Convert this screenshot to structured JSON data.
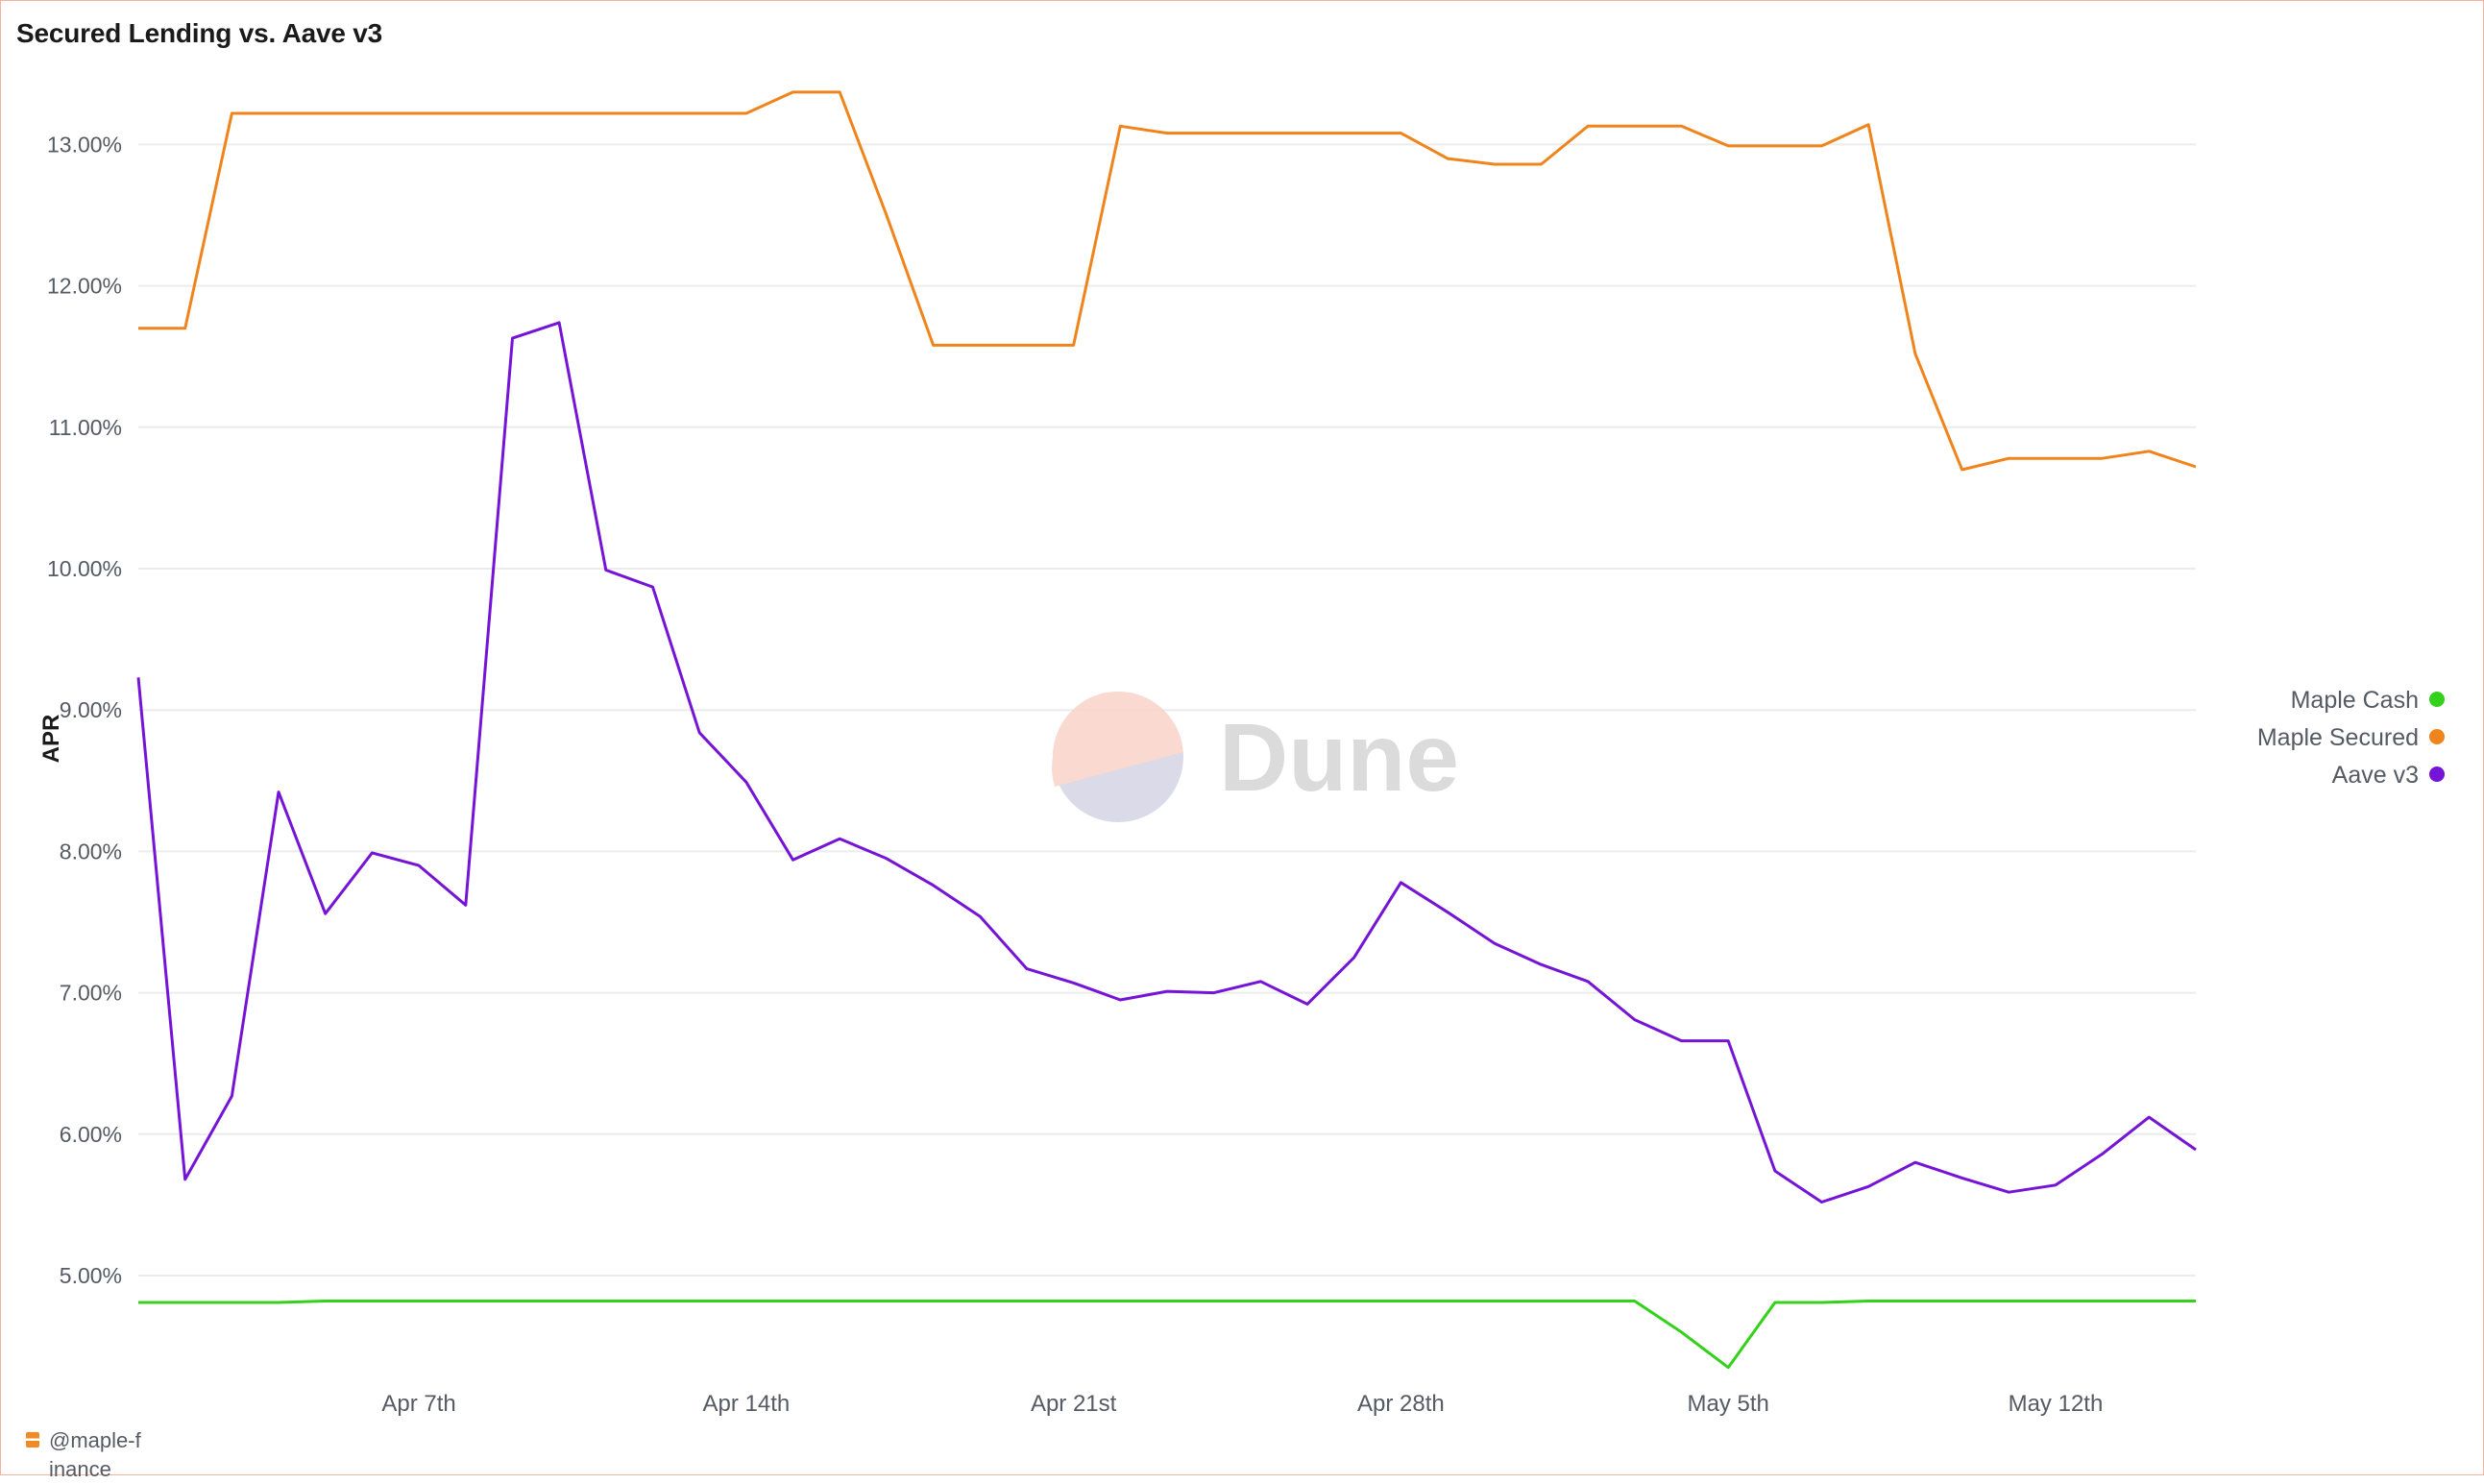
{
  "title": "Secured Lending vs. Aave v3",
  "watermark": "Dune",
  "author": "@maple-finance",
  "chart_data": {
    "type": "line",
    "title": "Secured Lending vs. Aave v3",
    "ylabel": "APR",
    "xlabel": "",
    "ylim": [
      4.0,
      13.5
    ],
    "y_format": "percent_2dp",
    "y_ticks": [
      5,
      6,
      7,
      8,
      9,
      10,
      11,
      12,
      13
    ],
    "grid": true,
    "legend_position": "right",
    "x": [
      "Apr 1",
      "Apr 2",
      "Apr 3",
      "Apr 4",
      "Apr 5",
      "Apr 6",
      "Apr 7",
      "Apr 8",
      "Apr 9",
      "Apr 10",
      "Apr 11",
      "Apr 12",
      "Apr 13",
      "Apr 14",
      "Apr 15",
      "Apr 16",
      "Apr 17",
      "Apr 18",
      "Apr 19",
      "Apr 20",
      "Apr 21",
      "Apr 22",
      "Apr 23",
      "Apr 24",
      "Apr 25",
      "Apr 26",
      "Apr 27",
      "Apr 28",
      "Apr 29",
      "Apr 30",
      "May 1",
      "May 2",
      "May 3",
      "May 4",
      "May 5",
      "May 6",
      "May 7",
      "May 8",
      "May 9",
      "May 10",
      "May 11",
      "May 12",
      "May 13",
      "May 14",
      "May 15"
    ],
    "x_tick_labels": [
      {
        "label": "Apr 7th",
        "index": 6
      },
      {
        "label": "Apr 14th",
        "index": 13
      },
      {
        "label": "Apr 21st",
        "index": 20
      },
      {
        "label": "Apr 28th",
        "index": 27
      },
      {
        "label": "May 5th",
        "index": 34
      },
      {
        "label": "May 12th",
        "index": 41
      }
    ],
    "series": [
      {
        "name": "Maple Cash",
        "color": "#33d11a",
        "values": [
          4.81,
          4.81,
          4.81,
          4.81,
          4.82,
          4.82,
          4.82,
          4.82,
          4.82,
          4.82,
          4.82,
          4.82,
          4.82,
          4.82,
          4.82,
          4.82,
          4.82,
          4.82,
          4.82,
          4.82,
          4.82,
          4.82,
          4.82,
          4.82,
          4.82,
          4.82,
          4.82,
          4.82,
          4.82,
          4.82,
          4.82,
          4.82,
          4.82,
          4.6,
          4.35,
          4.81,
          4.81,
          4.82,
          4.82,
          4.82,
          4.82,
          4.82,
          4.82,
          4.82,
          4.82
        ]
      },
      {
        "name": "Maple Secured",
        "color": "#f0841c",
        "values": [
          11.7,
          11.7,
          13.22,
          13.22,
          13.22,
          13.22,
          13.22,
          13.22,
          13.22,
          13.22,
          13.22,
          13.22,
          13.22,
          13.22,
          13.37,
          13.37,
          12.5,
          11.58,
          11.58,
          11.58,
          11.58,
          13.13,
          13.08,
          13.08,
          13.08,
          13.08,
          13.08,
          13.08,
          12.9,
          12.86,
          12.86,
          13.13,
          13.13,
          13.13,
          12.99,
          12.99,
          12.99,
          13.14,
          11.52,
          10.7,
          10.78,
          10.78,
          10.78,
          10.83,
          10.72
        ]
      },
      {
        "name": "Aave v3",
        "color": "#7514d6",
        "values": [
          9.23,
          5.68,
          6.27,
          8.42,
          7.56,
          7.99,
          7.9,
          7.62,
          11.63,
          11.74,
          9.99,
          9.87,
          8.84,
          8.49,
          7.94,
          8.09,
          7.95,
          7.76,
          7.54,
          7.17,
          7.07,
          6.95,
          7.01,
          7.0,
          7.08,
          6.92,
          7.25,
          7.78,
          7.57,
          7.35,
          7.2,
          7.08,
          6.81,
          6.66,
          6.66,
          5.74,
          5.52,
          5.63,
          5.8,
          5.69,
          5.59,
          5.64,
          5.86,
          6.12,
          5.89
        ]
      }
    ]
  }
}
